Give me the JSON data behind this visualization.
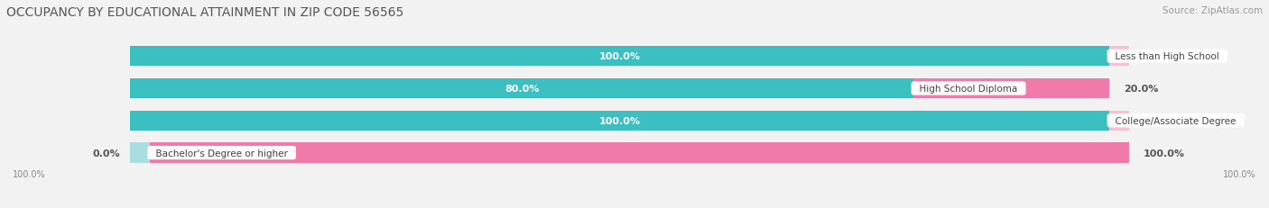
{
  "title": "OCCUPANCY BY EDUCATIONAL ATTAINMENT IN ZIP CODE 56565",
  "source": "Source: ZipAtlas.com",
  "categories": [
    "Less than High School",
    "High School Diploma",
    "College/Associate Degree",
    "Bachelor's Degree or higher"
  ],
  "owner_values": [
    100.0,
    80.0,
    100.0,
    0.0
  ],
  "renter_values": [
    0.0,
    20.0,
    0.0,
    100.0
  ],
  "owner_color": "#3bbfc0",
  "renter_color": "#f07aaa",
  "owner_color_light": "#aadde0",
  "renter_color_light": "#f9c0d5",
  "background_color": "#f2f2f2",
  "bar_background": "#e5e5e5",
  "title_fontsize": 10,
  "label_fontsize": 8,
  "source_fontsize": 7.5,
  "bar_height": 0.62,
  "total_width": 100.0,
  "axis_label_left": "100.0%",
  "axis_label_right": "100.0%"
}
